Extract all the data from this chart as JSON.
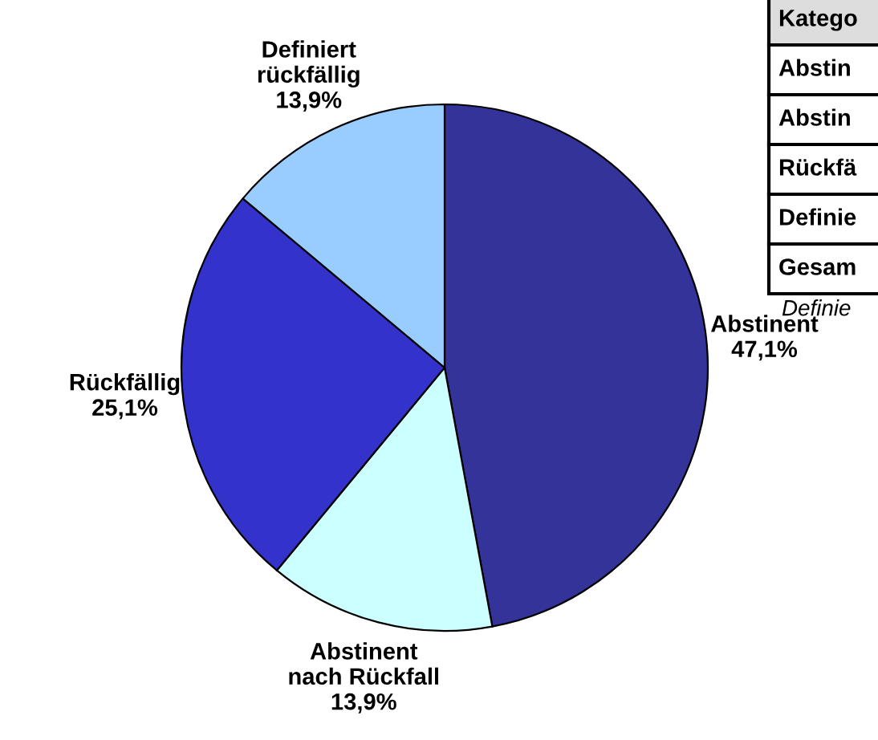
{
  "chart_data": {
    "type": "pie",
    "categories": [
      "Abstinent",
      "Abstinent\nnach Rückfall",
      "Rückfällig",
      "Definiert\nrückfällig"
    ],
    "values": [
      47.1,
      13.9,
      25.1,
      13.9
    ],
    "value_labels": [
      "47,1%",
      "13,9%",
      "25,1%",
      "13,9%"
    ],
    "colors": [
      "#333399",
      "#ccffff",
      "#3333cc",
      "#99ccff"
    ],
    "annotations": [
      "Katego",
      "Abstin",
      "Abstin",
      "Rückfä",
      "Definie",
      "Gesam",
      "Definie"
    ]
  }
}
